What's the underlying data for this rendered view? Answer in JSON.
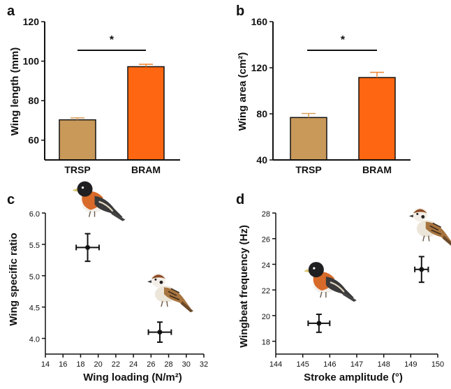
{
  "chart_data": [
    {
      "panel_letter": "a",
      "type": "bar",
      "categories": [
        "TRSP",
        "BRAM"
      ],
      "values": [
        70.3,
        97.2
      ],
      "errors": [
        1.0,
        1.2
      ],
      "ylabel": "Wing length (mm)",
      "xlabel": "",
      "ylim": [
        50,
        120
      ],
      "yticks": [
        60,
        80,
        100,
        120
      ],
      "bar_colors": [
        "#c9995a",
        "#ff6611"
      ],
      "error_colors": [
        "#d9a05b",
        "#f08a3a"
      ],
      "significance": "*"
    },
    {
      "panel_letter": "b",
      "type": "bar",
      "categories": [
        "TRSP",
        "BRAM"
      ],
      "values": [
        76.8,
        111.5
      ],
      "errors": [
        3.5,
        4.5
      ],
      "ylabel": "Wing area (cm²)",
      "xlabel": "",
      "ylim": [
        40,
        160
      ],
      "yticks": [
        40,
        80,
        120,
        160
      ],
      "bar_colors": [
        "#c9995a",
        "#ff6611"
      ],
      "error_colors": [
        "#d9a05b",
        "#f08a3a"
      ],
      "significance": "*"
    },
    {
      "panel_letter": "c",
      "type": "scatter",
      "xlabel": "Wing loading (N/m²)",
      "ylabel": "Wing specific ratio",
      "xlim": [
        14,
        32
      ],
      "ylim": [
        3.75,
        6.0
      ],
      "xticks": [
        14,
        16,
        18,
        20,
        22,
        24,
        26,
        28,
        30,
        32
      ],
      "yticks": [
        4.0,
        4.5,
        5.0,
        5.5,
        6.0
      ],
      "points": [
        {
          "x": 18.8,
          "y": 5.45,
          "xerr": 1.3,
          "yerr": 0.22,
          "icon": "brambling-bird-icon"
        },
        {
          "x": 27.0,
          "y": 4.1,
          "xerr": 1.3,
          "yerr": 0.16,
          "icon": "tree-sparrow-bird-icon"
        }
      ]
    },
    {
      "panel_letter": "d",
      "type": "scatter",
      "xlabel": "Stroke amplitude (°)",
      "ylabel": "Wingbeat frequency (Hz)",
      "xlim": [
        144,
        150
      ],
      "ylim": [
        17.0,
        28
      ],
      "xticks": [
        144,
        145,
        146,
        147,
        148,
        149,
        150
      ],
      "yticks": [
        18,
        20,
        22,
        24,
        26,
        28
      ],
      "points": [
        {
          "x": 145.6,
          "y": 19.4,
          "xerr": 0.4,
          "yerr": 0.7,
          "icon": "brambling-bird-icon"
        },
        {
          "x": 149.4,
          "y": 23.6,
          "xerr": 0.25,
          "yerr": 1.0,
          "icon": "tree-sparrow-bird-icon"
        }
      ]
    }
  ]
}
